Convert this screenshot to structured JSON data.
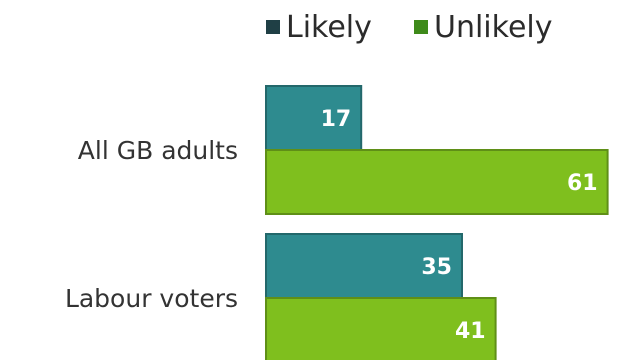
{
  "chart_data": {
    "type": "bar",
    "orientation": "horizontal",
    "categories": [
      "All GB adults",
      "Labour voters"
    ],
    "series": [
      {
        "name": "Likely",
        "values": [
          17,
          35
        ],
        "color": "#2e8b8f"
      },
      {
        "name": "Unlikely",
        "values": [
          61,
          41
        ],
        "color": "#7fbf1e"
      }
    ],
    "xlim": [
      0,
      100
    ],
    "grid": false,
    "legend_position": "top"
  }
}
